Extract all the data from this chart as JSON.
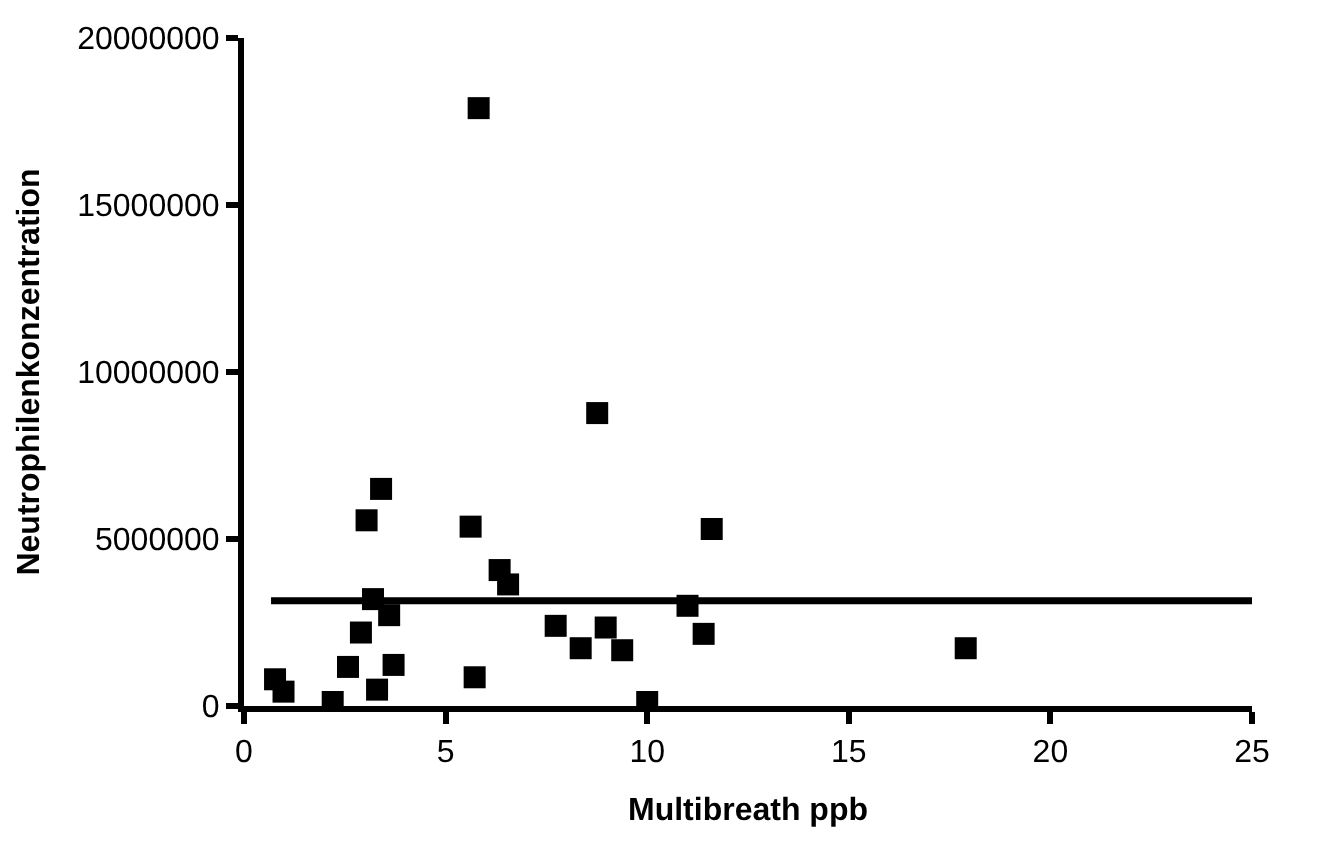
{
  "chart_data": {
    "type": "scatter",
    "xlabel": "Multibreath ppb",
    "ylabel": "Neutrophilenkonzentration",
    "xlim": [
      0,
      25
    ],
    "xticks": [
      0,
      5,
      10,
      15,
      20,
      25
    ],
    "ylim": [
      0,
      20000000
    ],
    "yticks": [
      0,
      5000000,
      10000000,
      15000000,
      20000000
    ],
    "series": [
      {
        "color": "#000000",
        "marker": "square",
        "x": [
          3.4,
          3.04,
          5.62,
          11.6,
          6.34,
          6.55,
          3.2,
          3.6,
          11.0,
          2.9,
          7.73,
          8.97,
          8.35,
          9.38,
          11.4,
          2.58,
          3.71,
          5.72,
          0.77,
          0.98,
          2.2,
          3.3,
          10.0,
          17.9,
          5.82,
          8.76
        ],
        "values": [
          6500000,
          5560000,
          5370000,
          5300000,
          4070000,
          3640000,
          3200000,
          2720000,
          3000000,
          2200000,
          2400000,
          2350000,
          1730000,
          1670000,
          2160000,
          1170000,
          1230000,
          860000,
          800000,
          430000,
          120000,
          490000,
          120000,
          1730000,
          17900000,
          8770000
        ]
      },
      {
        "type": "line",
        "color": "#000000",
        "line_style": "solid",
        "marker": "none",
        "x": [
          0.67,
          25
        ],
        "values": [
          3150000,
          3150000
        ]
      }
    ]
  }
}
